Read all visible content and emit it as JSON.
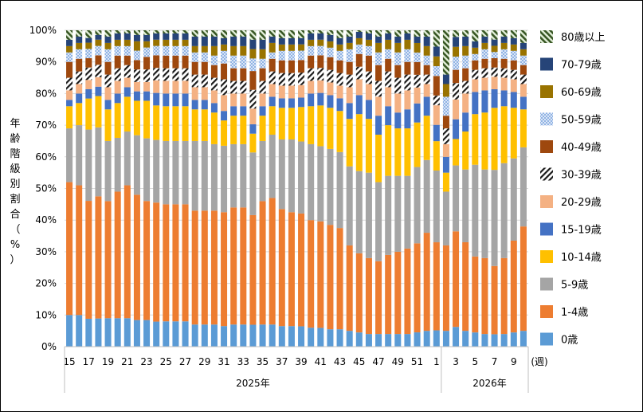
{
  "chart_data": {
    "type": "bar",
    "stacked": true,
    "percent": true,
    "ylabel": "年齢階級別割合（%）",
    "ylim": [
      0,
      100
    ],
    "yticks": [
      "0%",
      "10%",
      "20%",
      "30%",
      "40%",
      "50%",
      "60%",
      "70%",
      "80%",
      "90%",
      "100%"
    ],
    "x_unit": "(週)",
    "years": [
      {
        "label": "2025年",
        "start_index": 0,
        "end_index": 38
      },
      {
        "label": "2026年",
        "start_index": 39,
        "end_index": 48
      }
    ],
    "categories": [
      "15",
      "16",
      "17",
      "18",
      "19",
      "20",
      "21",
      "22",
      "23",
      "24",
      "25",
      "26",
      "27",
      "28",
      "29",
      "30",
      "31",
      "32",
      "33",
      "34",
      "35",
      "36",
      "37",
      "38",
      "39",
      "40",
      "41",
      "42",
      "43",
      "44",
      "45",
      "46",
      "47",
      "48",
      "49",
      "50",
      "51",
      "52",
      "1",
      "2",
      "3",
      "4",
      "5",
      "6",
      "7",
      "8",
      "9",
      "10"
    ],
    "x_tick_labels": [
      "15",
      "",
      "17",
      "",
      "19",
      "",
      "21",
      "",
      "23",
      "",
      "25",
      "",
      "27",
      "",
      "29",
      "",
      "31",
      "",
      "33",
      "",
      "35",
      "",
      "37",
      "",
      "39",
      "",
      "41",
      "",
      "43",
      "",
      "45",
      "",
      "47",
      "",
      "49",
      "",
      "51",
      "",
      "1",
      "",
      "3",
      "",
      "5",
      "",
      "7",
      "",
      "9",
      ""
    ],
    "legend": [
      "80歳以上",
      "70-79歳",
      "60-69歳",
      "50-59歳",
      "40-49歳",
      "30-39歳",
      "20-29歳",
      "15-19歳",
      "10-14歳",
      "5-9歳",
      "1-4歳",
      "0歳"
    ],
    "colors": {
      "0歳": "#5b9bd5",
      "1-4歳": "#ed7d31",
      "5-9歳": "#a5a5a5",
      "10-14歳": "#ffc000",
      "15-19歳": "#4472c4",
      "20-29歳": "#f4b183",
      "30-39歳": "#1a1a1a",
      "40-49歳": "#9e480e",
      "50-59歳": "#a9c4eb",
      "60-69歳": "#997300",
      "70-79歳": "#264478",
      "80歳以上": "#375623"
    },
    "series": [
      {
        "name": "0歳",
        "values": [
          10,
          10,
          9,
          9,
          9,
          9,
          9,
          8.5,
          8.5,
          8,
          8,
          8,
          8,
          7,
          7,
          7,
          6.5,
          7,
          7,
          7,
          7,
          7,
          6.5,
          6.5,
          6.5,
          6,
          6,
          5.5,
          5.5,
          5,
          4.5,
          4,
          4,
          4,
          4,
          4,
          4.5,
          5,
          5,
          5,
          6,
          5,
          4.5,
          4,
          4,
          4,
          4.5,
          5
        ]
      },
      {
        "name": "1-4歳",
        "values": [
          42,
          41,
          38,
          39,
          37,
          40,
          42,
          40,
          38,
          38,
          37,
          37,
          37,
          36,
          36,
          36,
          36,
          37,
          37,
          35,
          39,
          40,
          37,
          36,
          36,
          34,
          34,
          33,
          32,
          27,
          25,
          24,
          23,
          25,
          26,
          27,
          28,
          31,
          27,
          27,
          29,
          28,
          24,
          24,
          22,
          24,
          29,
          33
        ]
      },
      {
        "name": "5-9歳",
        "values": [
          17,
          19,
          23,
          22,
          19,
          17,
          17,
          19,
          20,
          20,
          20,
          20,
          20,
          22,
          22,
          21,
          21,
          20,
          20,
          20,
          19,
          20,
          22,
          23,
          23,
          24,
          24,
          24,
          24,
          25,
          26,
          27,
          25,
          25,
          24,
          23,
          24,
          23,
          22,
          17,
          20,
          23,
          29,
          28,
          31,
          30,
          26,
          25
        ]
      },
      {
        "name": "10-14歳",
        "values": [
          7,
          7,
          10,
          10,
          10,
          11,
          11,
          11,
          12,
          11,
          11,
          11,
          11,
          10,
          10,
          10,
          8,
          9,
          9,
          6,
          8,
          9,
          10,
          10,
          11,
          12,
          13,
          13,
          13,
          15,
          18,
          17,
          15,
          16,
          15,
          15,
          14,
          14,
          9,
          6,
          8,
          12,
          16,
          18,
          20,
          18,
          16,
          12
        ]
      },
      {
        "name": "15-19歳",
        "values": [
          2,
          3,
          3,
          3,
          3,
          3,
          3,
          3,
          3,
          4,
          4,
          4,
          4,
          3,
          3,
          3,
          3,
          3,
          3,
          3,
          3,
          3,
          3,
          3,
          3,
          4,
          4,
          4,
          4,
          5,
          6,
          6,
          6,
          6,
          5,
          6,
          6,
          6,
          5,
          5,
          6,
          6,
          7,
          7,
          6,
          5,
          5,
          4
        ]
      },
      {
        "name": "20-29歳",
        "values": [
          3,
          3,
          3,
          3,
          4,
          4,
          3,
          3,
          3,
          4,
          4,
          4,
          4,
          4,
          4,
          4,
          5,
          4,
          4,
          5,
          4,
          4,
          4,
          4,
          4,
          4,
          4,
          4,
          4,
          5,
          5,
          5,
          6,
          6,
          6,
          6,
          5,
          4,
          6,
          4,
          6,
          6,
          4,
          4,
          4,
          4,
          4,
          4
        ]
      },
      {
        "name": "30-39歳",
        "values": [
          4,
          4,
          4,
          4,
          4,
          4,
          4,
          4,
          4,
          4,
          4,
          4,
          4,
          4,
          4,
          4,
          5,
          4,
          4,
          6,
          4,
          4,
          4,
          4,
          4,
          4,
          4,
          4,
          4,
          4,
          4,
          4,
          5,
          5,
          5,
          5,
          4,
          3,
          3,
          5,
          5,
          4,
          3,
          3,
          3,
          3,
          3,
          3
        ]
      },
      {
        "name": "40-49歳",
        "values": [
          5,
          4,
          3,
          3,
          4,
          4,
          3,
          3,
          4,
          4,
          4,
          4,
          4,
          4,
          4,
          4,
          5,
          4,
          4,
          6,
          4,
          4,
          4,
          4,
          4,
          4,
          4,
          4,
          4,
          4,
          4,
          5,
          5,
          4,
          4,
          4,
          4,
          3,
          6,
          4,
          4,
          4,
          3,
          3,
          3,
          3,
          3,
          3
        ]
      },
      {
        "name": "50-59歳",
        "values": [
          3,
          3,
          3,
          3,
          4,
          3,
          3,
          3,
          3,
          3,
          3,
          3,
          3,
          3,
          3,
          3,
          4,
          4,
          4,
          4,
          3,
          2,
          3,
          3,
          3,
          3,
          3,
          3,
          3,
          4,
          3,
          3,
          4,
          3,
          4,
          4,
          3,
          3,
          3,
          6,
          4,
          4,
          2,
          3,
          2,
          3,
          3,
          3
        ]
      },
      {
        "name": "60-69歳",
        "values": [
          2,
          2,
          2,
          2,
          2,
          2,
          2,
          3,
          2,
          2,
          2,
          2,
          2,
          2,
          2,
          3,
          2,
          3,
          3,
          3,
          3,
          3,
          2,
          2,
          2,
          2,
          2,
          2,
          2,
          2,
          2,
          2,
          3,
          3,
          3,
          3,
          3,
          3,
          3,
          4,
          3,
          3,
          2,
          2,
          2,
          2,
          2,
          2
        ]
      },
      {
        "name": "70-79歳",
        "values": [
          2,
          2,
          1.5,
          1.5,
          2,
          2,
          2,
          2,
          2,
          2,
          2,
          2,
          2,
          3,
          3,
          3,
          2,
          3,
          3,
          3,
          3,
          2,
          2,
          2,
          2,
          2,
          2,
          2,
          2,
          2,
          2,
          2,
          2,
          2,
          2,
          2,
          2,
          3,
          3,
          3,
          3,
          3,
          2,
          2,
          2,
          2,
          2,
          2
        ]
      },
      {
        "name": "80歳以上",
        "values": [
          3,
          2,
          2.5,
          1.5,
          2,
          1,
          1,
          1.5,
          1.5,
          1,
          1,
          1,
          1,
          2,
          2,
          2,
          2.5,
          2,
          2,
          3,
          3,
          2,
          2.5,
          2.5,
          2.5,
          1,
          1,
          1.5,
          2.5,
          2,
          0.5,
          1,
          2,
          1,
          2,
          1,
          2,
          2,
          5,
          14,
          2,
          2,
          3.5,
          2,
          3,
          2,
          2.5,
          4
        ]
      }
    ]
  }
}
